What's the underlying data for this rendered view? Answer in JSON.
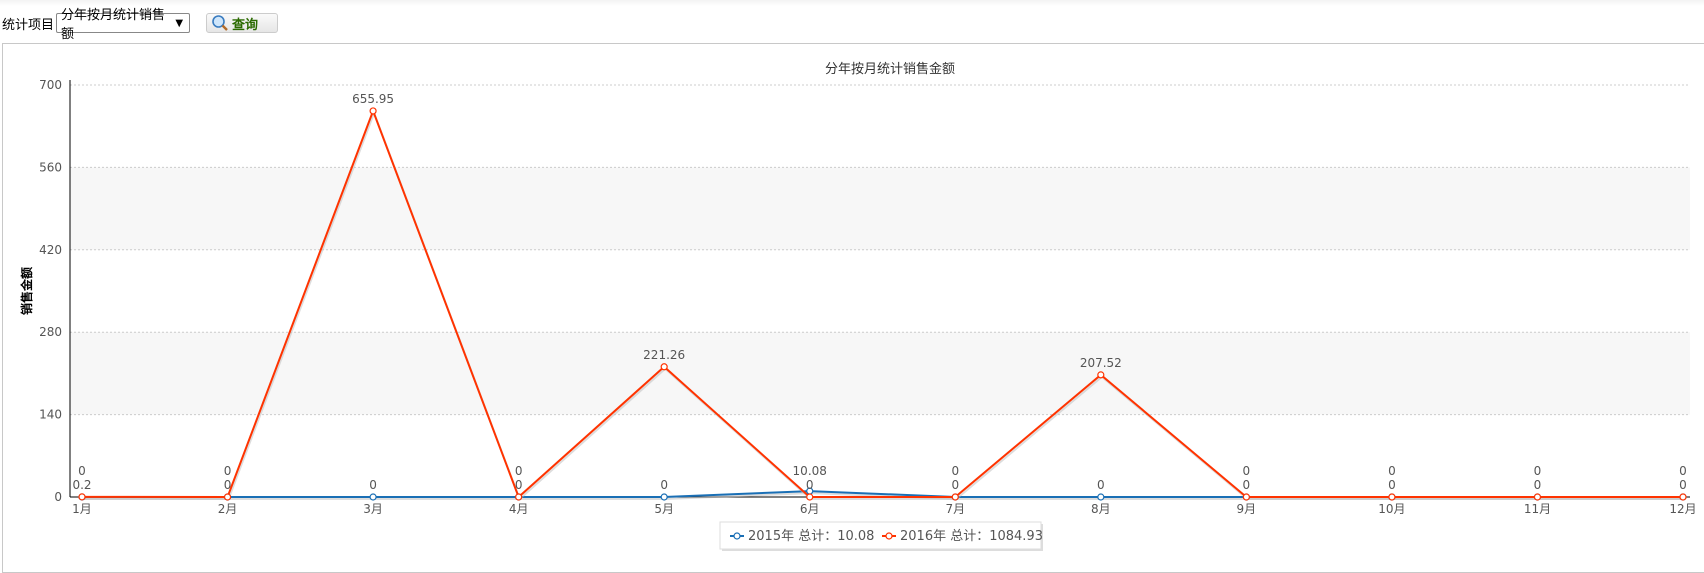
{
  "toolbar": {
    "label": "统计项目",
    "select_value": "分年按月统计销售额",
    "query_label": "查询",
    "query_icon": "magnifier-icon"
  },
  "chart_data": {
    "type": "line",
    "title": "分年按月统计销售金额",
    "ylabel": "销售金额",
    "xlabel": "",
    "categories": [
      "1月",
      "2月",
      "3月",
      "4月",
      "5月",
      "6月",
      "7月",
      "8月",
      "9月",
      "10月",
      "11月",
      "12月"
    ],
    "ylim": [
      0,
      700
    ],
    "yticks": [
      0,
      140,
      280,
      420,
      560,
      700
    ],
    "grid": true,
    "legend_position": "bottom",
    "series": [
      {
        "name": "2015年",
        "legend": "2015年 总计：10.08",
        "color": "#1a6fb5",
        "values": [
          0,
          0,
          0,
          0,
          0,
          10.08,
          0,
          0,
          0,
          0,
          0,
          0
        ]
      },
      {
        "name": "2016年",
        "legend": "2016年 总计：1084.93",
        "color": "#ff3300",
        "values": [
          0.2,
          0,
          655.95,
          0,
          221.26,
          0,
          0,
          207.52,
          0,
          0,
          0,
          0
        ]
      }
    ]
  }
}
